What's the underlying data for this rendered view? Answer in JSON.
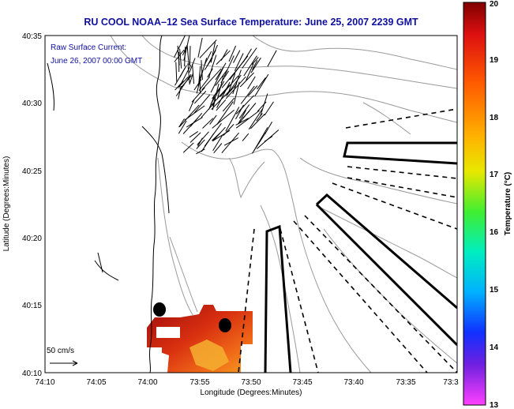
{
  "title": "RU COOL   NOAA–12  Sea Surface Temperature:  June 25, 2007 2239 GMT",
  "current_note": {
    "line1": "Raw Surface Current:",
    "line2": "June 26, 2007 00:00 GMT"
  },
  "scale_label": "50 cm/s",
  "x_axis": {
    "label": "Longitude (Degrees:Minutes)",
    "ticks": [
      "74:10",
      "74:05",
      "74:00",
      "73:55",
      "73:50",
      "73:45",
      "73:40",
      "73:35",
      "73:3"
    ]
  },
  "y_axis": {
    "label": "Latitude (Degrees:Minutes)",
    "ticks": [
      "40:35",
      "40:30",
      "40:25",
      "40:20",
      "40:15",
      "40:10"
    ]
  },
  "colorbar": {
    "label": "Temperature (°C)",
    "ticks": [
      "20",
      "19",
      "18",
      "17",
      "16",
      "15",
      "14",
      "13"
    ]
  },
  "colors": {
    "title_text": "#1010a0",
    "land_contour": "#000000",
    "bathymetry_contour": "#9a9a9a",
    "sst_warm": "#b01010",
    "sst_mid": "#f07018"
  }
}
